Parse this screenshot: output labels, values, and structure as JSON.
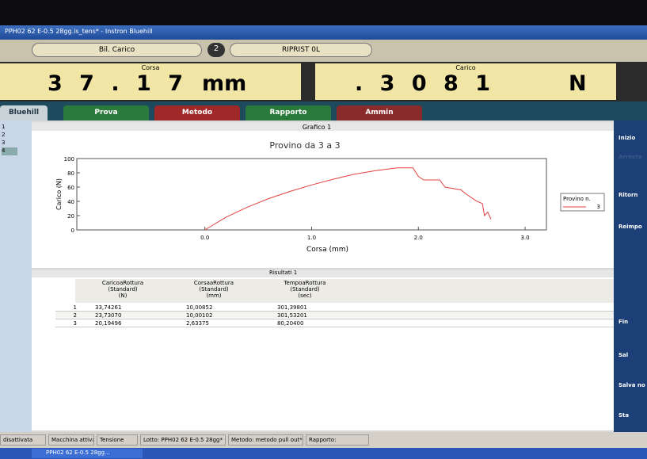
{
  "window": {
    "title": "PPH02 62 E-0.5 28gg.is_tens* - Instron Bluehill",
    "toolbar": {
      "button_label": "Bil. Carico",
      "step": "2",
      "step_label": "RIPRIST 0L"
    }
  },
  "readouts": [
    {
      "label": "Corsa",
      "value": "3 7 . 1 7",
      "unit": "mm"
    },
    {
      "label": "Carico",
      "value": ". 3 0 8 1",
      "unit": "N"
    }
  ],
  "tabs": [
    "Bluehill",
    "Prova",
    "Metodo",
    "Rapporto",
    "Ammin"
  ],
  "specimen_list": [
    "1",
    "2",
    "3",
    "4"
  ],
  "chart_data": {
    "type": "line",
    "panel_title": "Grafico 1",
    "title": "Provino da 3 a 3",
    "x_label": "Corsa (mm)",
    "y_label": "Carico (N)",
    "x": [
      0,
      0.2,
      0.4,
      0.6,
      0.8,
      1.0,
      1.2,
      1.4,
      1.6,
      1.8,
      1.95,
      2.0,
      2.05,
      2.2,
      2.25,
      2.4,
      2.45,
      2.55,
      2.6,
      2.62,
      2.65,
      2.68
    ],
    "series": [
      {
        "name": "3",
        "color": "#e04040",
        "values": [
          0,
          18,
          32,
          44,
          54,
          63,
          71,
          78,
          83,
          87,
          87,
          75,
          70,
          70,
          60,
          56,
          50,
          40,
          37,
          20,
          25,
          15
        ]
      }
    ],
    "legend_title": "Provino n.",
    "xlim": [
      -1.2,
      3.2
    ],
    "xticks": [
      {
        "value": 0,
        "label": "0.0"
      },
      {
        "value": 1,
        "label": "1.0"
      },
      {
        "value": 2,
        "label": "2.0"
      },
      {
        "value": 3,
        "label": "3.0"
      }
    ],
    "ylim": [
      0,
      100
    ],
    "yticks": [
      0,
      20,
      40,
      60,
      80,
      100
    ]
  },
  "results": {
    "title": "Risultati 1",
    "columns": [
      [
        "CaricoaRottura",
        "(Standard)",
        "(N)"
      ],
      [
        "CorsaaRottura",
        "(Standard)",
        "(mm)"
      ],
      [
        "TempoaRottura",
        "(Standard)",
        "(sec)"
      ]
    ],
    "rows": [
      [
        "1",
        "33,74261",
        "10,00852",
        "301,39801"
      ],
      [
        "2",
        "23,73070",
        "10,00102",
        "301,53201"
      ],
      [
        "3",
        "20,19496",
        "2,63375",
        "80,20400"
      ]
    ]
  },
  "side_buttons": [
    "Inizio",
    "Arresta",
    "Ritorn",
    "Reimpo",
    "Fin",
    "Sal",
    "Salva no",
    "Sta"
  ],
  "status_bar": [
    "disattivata",
    "Macchina attiva",
    "Tensione",
    "Lotto: PPH02 62 E-0.5 28gg*",
    "Metodo: metodo pull out*",
    "Rapporto:"
  ],
  "taskbar": "PPH02 62 E-0.5 28gg..."
}
